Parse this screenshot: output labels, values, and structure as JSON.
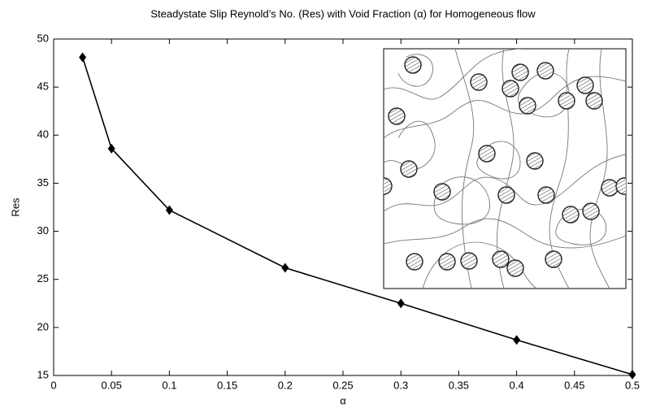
{
  "chart_data": {
    "type": "line",
    "title": "Steadystate Slip Reynold’s No. (Res) with Void Fraction (α) for Homogeneous flow",
    "x_label": "α",
    "y_label": "Res",
    "x": [
      0.025,
      0.05,
      0.1,
      0.2,
      0.3,
      0.4,
      0.5
    ],
    "values": [
      48.1,
      38.6,
      32.2,
      26.2,
      22.5,
      18.7,
      15.1
    ],
    "color": "#000000",
    "xlim": [
      0,
      0.5
    ],
    "xticks": [
      0,
      0.05,
      0.1,
      0.15,
      0.2,
      0.25,
      0.3,
      0.35,
      0.4,
      0.45,
      0.5
    ],
    "ylim": [
      15,
      50
    ],
    "yticks": [
      15,
      20,
      25,
      30,
      35,
      40,
      45,
      50
    ],
    "grid": false
  }
}
